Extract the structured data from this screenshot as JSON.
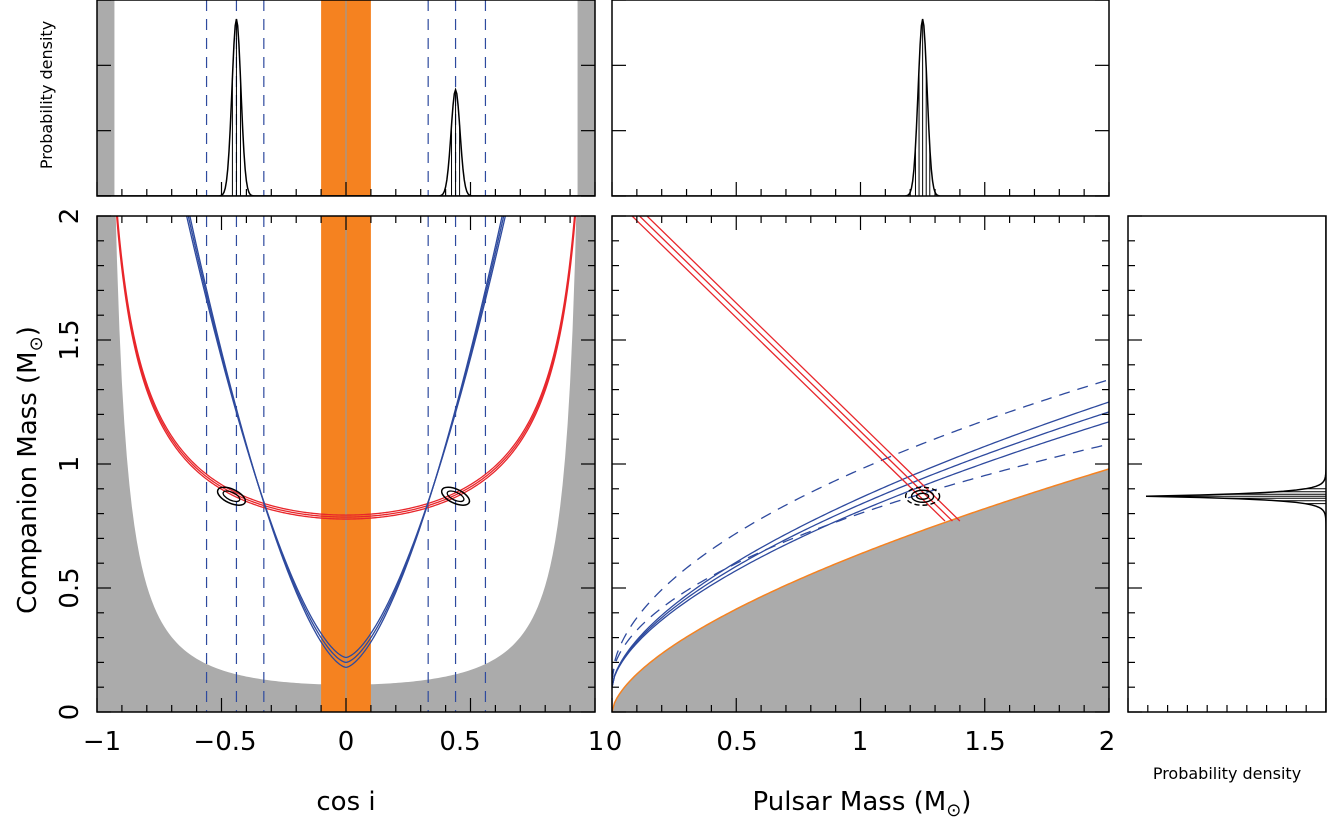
{
  "colors": {
    "forbidden_region": "#ababab",
    "shapiro_band": "#f58220",
    "red_constraint": "#e8262b",
    "blue_constraint": "#2e4a9e",
    "contour": "#000000"
  },
  "labels": {
    "ylabel_main": "Companion Mass (M",
    "xlabel_cosi": "cos i",
    "xlabel_pulsar": "Pulsar Mass (M",
    "ylabel_top": "Probability density",
    "xlabel_right": "Probability density",
    "sun_symbol": "⊙",
    "close_paren": ")"
  },
  "chart_data": [
    {
      "type": "line",
      "panel": "top-left",
      "xlim": [
        -1,
        1
      ],
      "ylabel": "Probability density",
      "series": [
        {
          "peak_x": -0.44,
          "relative_height": 1.0,
          "width": 0.018
        },
        {
          "peak_x": 0.44,
          "relative_height": 0.6,
          "width": 0.018
        }
      ],
      "forbidden_edges": [
        -0.93,
        0.93
      ],
      "shaded_band": [
        -0.1,
        0.1
      ],
      "dashed_lines": [
        -0.56,
        -0.44,
        -0.33,
        0.33,
        0.44,
        0.56
      ]
    },
    {
      "type": "line",
      "panel": "top-middle",
      "xlim": [
        0,
        2
      ],
      "peak_x": 1.25,
      "width": 0.018
    },
    {
      "type": "line",
      "panel": "main-left",
      "xlabel": "cos i",
      "ylabel": "Companion Mass (M⊙)",
      "xlim": [
        -1,
        1
      ],
      "ylim": [
        0,
        2
      ],
      "xticks": [
        "−1",
        "−0.5",
        "0",
        "0.5",
        "1"
      ],
      "yticks": [
        "0",
        "0.5",
        "1",
        "1.5",
        "2"
      ],
      "shaded_band": [
        -0.1,
        0.1
      ],
      "dashed_lines": [
        -0.56,
        -0.44,
        -0.33,
        0.33,
        0.44,
        0.56
      ],
      "red_curve_min": 0.79,
      "blue_curve_min": 0.2,
      "intersections": [
        {
          "cosi": -0.46,
          "mc": 0.87
        },
        {
          "cosi": 0.44,
          "mc": 0.87
        }
      ]
    },
    {
      "type": "line",
      "panel": "main-middle",
      "xlabel": "Pulsar Mass (M⊙)",
      "xlim": [
        0,
        2
      ],
      "ylim": [
        0,
        2
      ],
      "xticks": [
        "0",
        "0.5",
        "1",
        "1.5",
        "2"
      ],
      "intersection": {
        "mp": 1.25,
        "mc": 0.87
      }
    },
    {
      "type": "line",
      "panel": "right",
      "xlabel": "Probability density",
      "ylim": [
        0,
        2
      ],
      "peak_y": 0.87,
      "width": 0.018
    }
  ]
}
